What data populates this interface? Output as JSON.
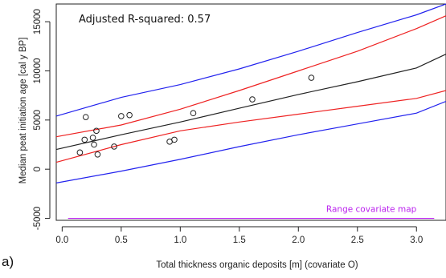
{
  "chart_data": {
    "type": "scatter",
    "xlabel": "Total thickness organic deposits [m] (covariate O)",
    "ylabel": "Median peat initiation age [cal y BP]",
    "panel_label": "a)",
    "annotation": "Adjusted R-squared: 0.57",
    "xlim": [
      -0.05,
      3.25
    ],
    "ylim": [
      -5200,
      16800
    ],
    "x_ticks": [
      "0.0",
      "0.5",
      "1.0",
      "1.5",
      "2.0",
      "2.5",
      "3.0"
    ],
    "x_tick_values": [
      0,
      0.5,
      1.0,
      1.5,
      2.0,
      2.5,
      3.0
    ],
    "y_ticks": [
      "-5000",
      "0",
      "5000",
      "10000",
      "15000"
    ],
    "y_tick_values": [
      -5000,
      0,
      5000,
      10000,
      15000
    ],
    "grid": false,
    "points": [
      {
        "x": 0.15,
        "y": 1700
      },
      {
        "x": 0.19,
        "y": 3000
      },
      {
        "x": 0.2,
        "y": 5300
      },
      {
        "x": 0.26,
        "y": 3200
      },
      {
        "x": 0.27,
        "y": 2500
      },
      {
        "x": 0.29,
        "y": 3900
      },
      {
        "x": 0.3,
        "y": 1500
      },
      {
        "x": 0.44,
        "y": 2300
      },
      {
        "x": 0.5,
        "y": 5400
      },
      {
        "x": 0.57,
        "y": 5500
      },
      {
        "x": 0.91,
        "y": 2800
      },
      {
        "x": 0.95,
        "y": 3000
      },
      {
        "x": 1.11,
        "y": 5700
      },
      {
        "x": 1.61,
        "y": 7100
      },
      {
        "x": 2.11,
        "y": 9300
      }
    ],
    "series": [
      {
        "role": "regression",
        "color": "#222222",
        "x": [
          -0.05,
          0.5,
          1.0,
          1.5,
          2.0,
          2.5,
          3.0,
          3.25
        ],
        "y": [
          2000,
          3500,
          4800,
          6200,
          7600,
          8900,
          10300,
          11700
        ]
      },
      {
        "role": "confidence-upper",
        "color": "#ee2222",
        "x": [
          -0.05,
          0.5,
          1.0,
          1.5,
          2.0,
          2.5,
          3.0,
          3.25
        ],
        "y": [
          3300,
          4500,
          6100,
          8000,
          10000,
          12000,
          14300,
          15600
        ]
      },
      {
        "role": "confidence-lower",
        "color": "#ee2222",
        "x": [
          -0.05,
          0.5,
          1.0,
          1.5,
          2.0,
          2.5,
          3.0,
          3.25
        ],
        "y": [
          700,
          2500,
          3900,
          4800,
          5600,
          6400,
          7200,
          8000
        ]
      },
      {
        "role": "prediction-upper",
        "color": "#2222ee",
        "x": [
          -0.05,
          0.5,
          1.0,
          1.5,
          2.0,
          2.5,
          3.0,
          3.25
        ],
        "y": [
          5400,
          7300,
          8600,
          10200,
          12000,
          13900,
          15700,
          16800
        ]
      },
      {
        "role": "prediction-lower",
        "color": "#2222ee",
        "x": [
          -0.05,
          0.5,
          1.0,
          1.5,
          2.0,
          2.5,
          3.0,
          3.25
        ],
        "y": [
          -1400,
          -200,
          1000,
          2300,
          3500,
          4600,
          5700,
          6900
        ]
      }
    ],
    "range_line": {
      "label": "Range covariate map",
      "x": [
        0.05,
        3.15
      ],
      "y": -5000,
      "color": "#bb22ee"
    }
  }
}
